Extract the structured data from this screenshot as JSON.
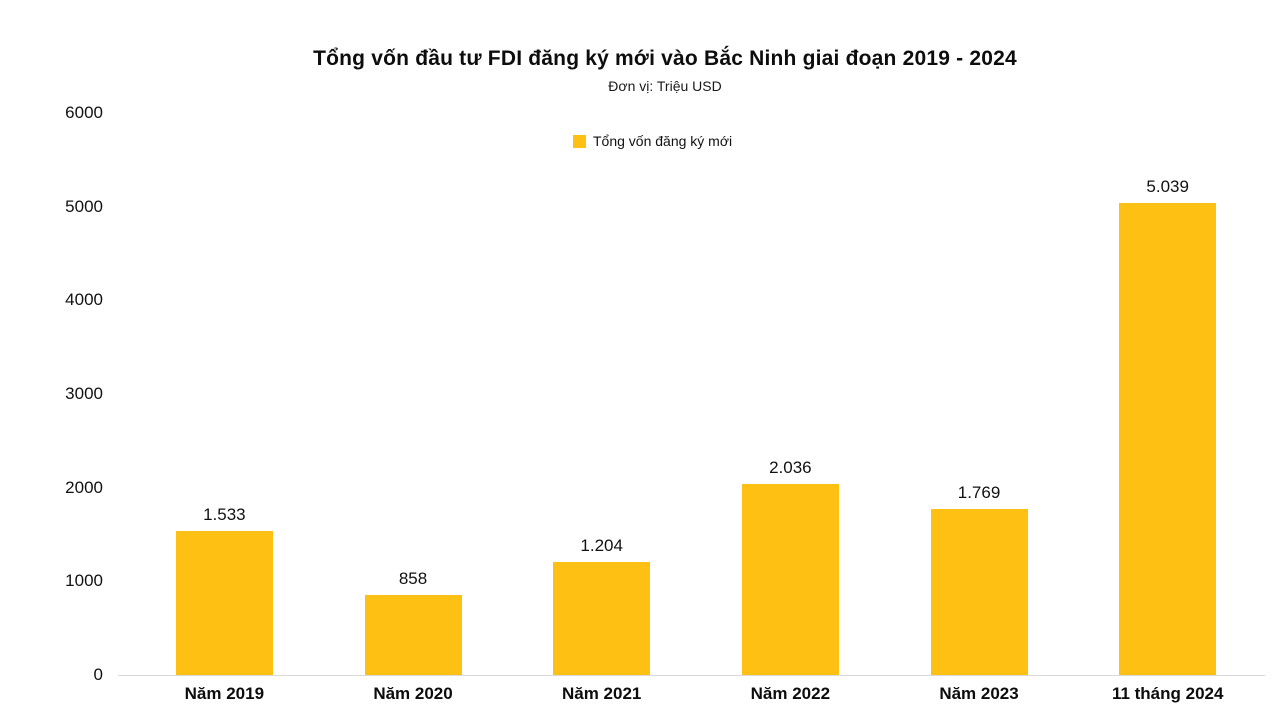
{
  "chart_data": {
    "type": "bar",
    "title": "Tổng vốn đầu tư FDI đăng ký mới vào Bắc Ninh giai đoạn 2019 - 2024",
    "subtitle": "Đơn vị: Triệu USD",
    "legend": {
      "label": "Tổng vốn đăng ký mới",
      "position": "top-center"
    },
    "categories": [
      "Năm 2019",
      "Năm 2020",
      "Năm 2021",
      "Năm 2022",
      "Năm 2023",
      "11 tháng 2024"
    ],
    "values": [
      1533,
      858,
      1204,
      2036,
      1769,
      5039
    ],
    "value_labels": [
      "1.533",
      "858",
      "1.204",
      "2.036",
      "1.769",
      "5.039"
    ],
    "yticks": [
      "0",
      "1000",
      "2000",
      "3000",
      "4000",
      "5000",
      "6000"
    ],
    "ytick_values": [
      0,
      1000,
      2000,
      3000,
      4000,
      5000,
      6000
    ],
    "ylim": [
      0,
      6000
    ],
    "xlabel": "",
    "ylabel": "",
    "grid": false,
    "bar_color": "#FDC013",
    "axis_line_color": "#d9d9d9",
    "text_color": "#111111"
  }
}
